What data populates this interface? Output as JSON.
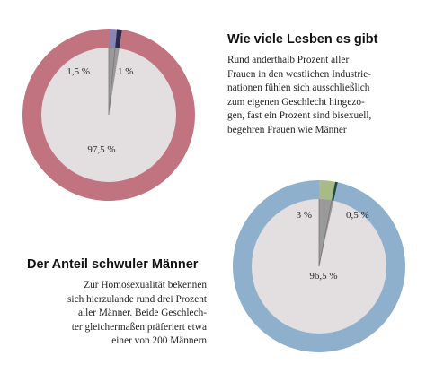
{
  "chart_data": [
    {
      "type": "pie",
      "title": "Wie viele Lesben es gibt",
      "description_lines": [
        "Rund anderthalb Prozent aller",
        "Frauen in den westlichen Industrie-",
        "nationen fühlen sich ausschließlich",
        "zum eigenen Geschlecht hingezo-",
        "gen, fast ein Prozent sind bisexuell,",
        "begehren Frauen wie Männer"
      ],
      "slices": [
        {
          "label": "1,5 %",
          "value": 1.5,
          "color": "#8a86b4"
        },
        {
          "label": "1 %",
          "value": 1.0,
          "color": "#2b2a4a"
        },
        {
          "label": "97,5 %",
          "value": 97.5,
          "color": "#c17480"
        }
      ],
      "center_color": "#e3dfe0"
    },
    {
      "type": "pie",
      "title": "Der Anteil schwuler Männer",
      "description_lines": [
        "Zur Homosexualität bekennen",
        "sich hierzulande rund drei Prozent",
        "aller Männer. Beide Geschlech-",
        "ter gleichermaßen präferiert etwa",
        "einer von 200 Männern"
      ],
      "slices": [
        {
          "label": "3 %",
          "value": 3.0,
          "color": "#a8bb86"
        },
        {
          "label": "0,5 %",
          "value": 0.5,
          "color": "#1d4a42"
        },
        {
          "label": "96,5 %",
          "value": 96.5,
          "color": "#8fb0cd"
        }
      ],
      "center_color": "#e3dfe0"
    }
  ]
}
